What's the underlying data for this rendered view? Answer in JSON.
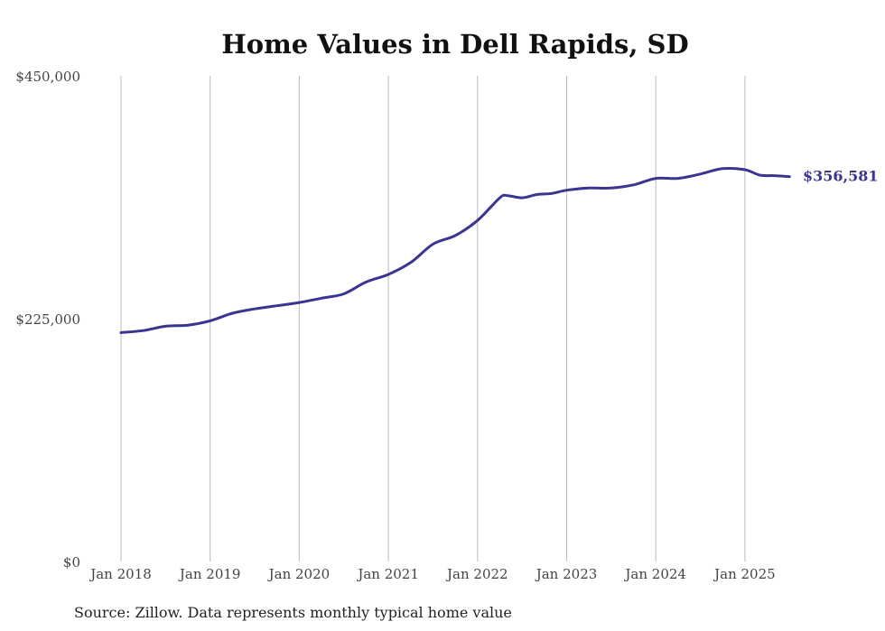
{
  "chart_data": {
    "type": "line",
    "title": "Home Values in Dell Rapids, SD",
    "xlabel": "",
    "ylabel": "",
    "source": "Source: Zillow. Data represents monthly typical home value",
    "ylim": [
      0,
      450000
    ],
    "y_ticks": [
      {
        "value": 0,
        "label": "$0"
      },
      {
        "value": 225000,
        "label": "$225,000"
      },
      {
        "value": 450000,
        "label": "$450,000"
      }
    ],
    "x_ticks": [
      {
        "date": "2018-01",
        "label": "Jan 2018"
      },
      {
        "date": "2019-01",
        "label": "Jan 2019"
      },
      {
        "date": "2020-01",
        "label": "Jan 2020"
      },
      {
        "date": "2021-01",
        "label": "Jan 2021"
      },
      {
        "date": "2022-01",
        "label": "Jan 2022"
      },
      {
        "date": "2023-01",
        "label": "Jan 2023"
      },
      {
        "date": "2024-01",
        "label": "Jan 2024"
      },
      {
        "date": "2025-01",
        "label": "Jan 2025"
      }
    ],
    "xlim": [
      "2018-01",
      "2025-08"
    ],
    "grid": "vertical",
    "line_color": "#3b3491",
    "end_label": "$356,581",
    "series": [
      {
        "x": [
          "2018-01",
          "2018-04",
          "2018-07",
          "2018-10",
          "2019-01",
          "2019-04",
          "2019-07",
          "2019-10",
          "2020-01",
          "2020-04",
          "2020-07",
          "2020-10",
          "2021-01",
          "2021-04",
          "2021-07",
          "2021-10",
          "2022-01",
          "2022-04",
          "2022-05",
          "2022-07",
          "2022-09",
          "2022-11",
          "2023-01",
          "2023-04",
          "2023-07",
          "2023-10",
          "2024-01",
          "2024-04",
          "2024-07",
          "2024-10",
          "2025-01",
          "2025-03",
          "2025-05",
          "2025-07"
        ],
        "values": [
          212000,
          214000,
          218000,
          219000,
          223000,
          230000,
          234000,
          237000,
          240000,
          244000,
          248000,
          259000,
          266000,
          277000,
          294000,
          302000,
          316000,
          337000,
          339000,
          337000,
          340000,
          341000,
          344000,
          346000,
          346000,
          349000,
          355000,
          355000,
          359000,
          364000,
          363000,
          358000,
          357500,
          356581
        ]
      }
    ]
  }
}
